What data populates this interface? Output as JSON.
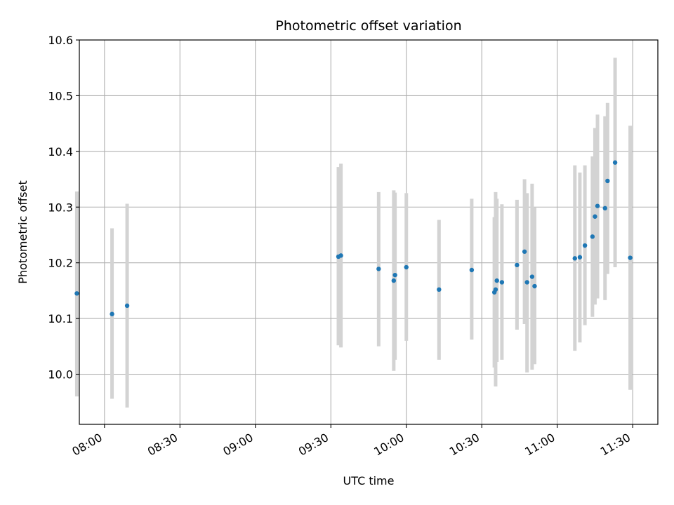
{
  "chart_data": {
    "type": "scatter",
    "title": "Photometric offset variation",
    "xlabel": "UTC time",
    "ylabel": "Photometric offset",
    "x_ticks": [
      "08:00",
      "08:30",
      "09:00",
      "09:30",
      "10:00",
      "10:30",
      "11:00",
      "11:30"
    ],
    "y_ticks": [
      "10.0",
      "10.1",
      "10.2",
      "10.3",
      "10.4",
      "10.5",
      "10.6"
    ],
    "xlim": [
      "07:50",
      "11:40"
    ],
    "ylim": [
      9.91,
      10.6
    ],
    "grid": true,
    "colors": {
      "points": "#1f77b4",
      "errorbars": "#d3d3d3",
      "grid": "#b0b0b0"
    },
    "points": [
      {
        "x": "07:49",
        "y": 10.145,
        "ylo": 9.96,
        "yhi": 10.328
      },
      {
        "x": "08:03",
        "y": 10.108,
        "ylo": 9.956,
        "yhi": 10.262
      },
      {
        "x": "08:09",
        "y": 10.123,
        "ylo": 9.94,
        "yhi": 10.306
      },
      {
        "x": "09:33",
        "y": 10.211,
        "ylo": 10.052,
        "yhi": 10.372
      },
      {
        "x": "09:34",
        "y": 10.213,
        "ylo": 10.048,
        "yhi": 10.378
      },
      {
        "x": "09:49",
        "y": 10.189,
        "ylo": 10.05,
        "yhi": 10.327
      },
      {
        "x": "09:55",
        "y": 10.168,
        "ylo": 10.006,
        "yhi": 10.33
      },
      {
        "x": "09:55.5",
        "y": 10.178,
        "ylo": 10.026,
        "yhi": 10.326
      },
      {
        "x": "10:00",
        "y": 10.192,
        "ylo": 10.06,
        "yhi": 10.325
      },
      {
        "x": "10:13",
        "y": 10.152,
        "ylo": 10.026,
        "yhi": 10.277
      },
      {
        "x": "10:26",
        "y": 10.187,
        "ylo": 10.062,
        "yhi": 10.315
      },
      {
        "x": "10:35",
        "y": 10.147,
        "ylo": 10.012,
        "yhi": 10.282
      },
      {
        "x": "10:35.5",
        "y": 10.152,
        "ylo": 9.978,
        "yhi": 10.327
      },
      {
        "x": "10:36",
        "y": 10.168,
        "ylo": 10.022,
        "yhi": 10.315
      },
      {
        "x": "10:38",
        "y": 10.165,
        "ylo": 10.026,
        "yhi": 10.305
      },
      {
        "x": "10:44",
        "y": 10.196,
        "ylo": 10.08,
        "yhi": 10.313
      },
      {
        "x": "10:47",
        "y": 10.22,
        "ylo": 10.09,
        "yhi": 10.35
      },
      {
        "x": "10:48",
        "y": 10.165,
        "ylo": 10.003,
        "yhi": 10.325
      },
      {
        "x": "10:50",
        "y": 10.175,
        "ylo": 10.008,
        "yhi": 10.342
      },
      {
        "x": "10:51",
        "y": 10.158,
        "ylo": 10.018,
        "yhi": 10.3
      },
      {
        "x": "11:07",
        "y": 10.208,
        "ylo": 10.042,
        "yhi": 10.375
      },
      {
        "x": "11:09",
        "y": 10.21,
        "ylo": 10.057,
        "yhi": 10.362
      },
      {
        "x": "11:11",
        "y": 10.231,
        "ylo": 10.088,
        "yhi": 10.375
      },
      {
        "x": "11:14",
        "y": 10.247,
        "ylo": 10.103,
        "yhi": 10.391
      },
      {
        "x": "11:15",
        "y": 10.283,
        "ylo": 10.125,
        "yhi": 10.442
      },
      {
        "x": "11:16",
        "y": 10.302,
        "ylo": 10.136,
        "yhi": 10.466
      },
      {
        "x": "11:19",
        "y": 10.298,
        "ylo": 10.133,
        "yhi": 10.463
      },
      {
        "x": "11:20",
        "y": 10.347,
        "ylo": 10.18,
        "yhi": 10.487
      },
      {
        "x": "11:23",
        "y": 10.38,
        "ylo": 10.192,
        "yhi": 10.568
      },
      {
        "x": "11:29",
        "y": 10.209,
        "ylo": 9.972,
        "yhi": 10.446
      }
    ]
  }
}
